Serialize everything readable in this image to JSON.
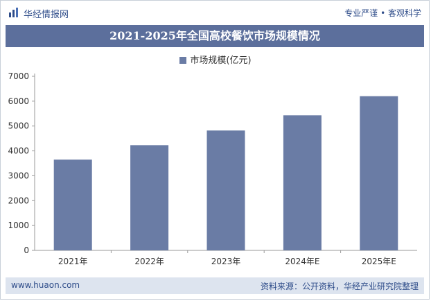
{
  "header": {
    "brand": "华经情报网",
    "tagline": "专业严谨 • 客观科学"
  },
  "footer": {
    "website": "www.huaon.com",
    "source": "资料来源：公开资料，华经产业研究院整理"
  },
  "colors": {
    "bar": "#6a7ca5",
    "title_bg": "#5c6f9c",
    "footer_bg": "#dde4ef",
    "brand": "#2f4d8a"
  },
  "chart_data": {
    "type": "bar",
    "title": "2021-2025年全国高校餐饮市场规模情况",
    "legend_position": "top-center",
    "categories": [
      "2021年",
      "2022年",
      "2023年",
      "2024年E",
      "2025年E"
    ],
    "series": [
      {
        "name": "市场规模(亿元)",
        "values": [
          3650,
          4230,
          4820,
          5430,
          6200
        ]
      }
    ],
    "yticks": [
      0,
      1000,
      2000,
      3000,
      4000,
      5000,
      6000,
      7000
    ],
    "ylim": [
      0,
      7000
    ],
    "grid": false
  }
}
